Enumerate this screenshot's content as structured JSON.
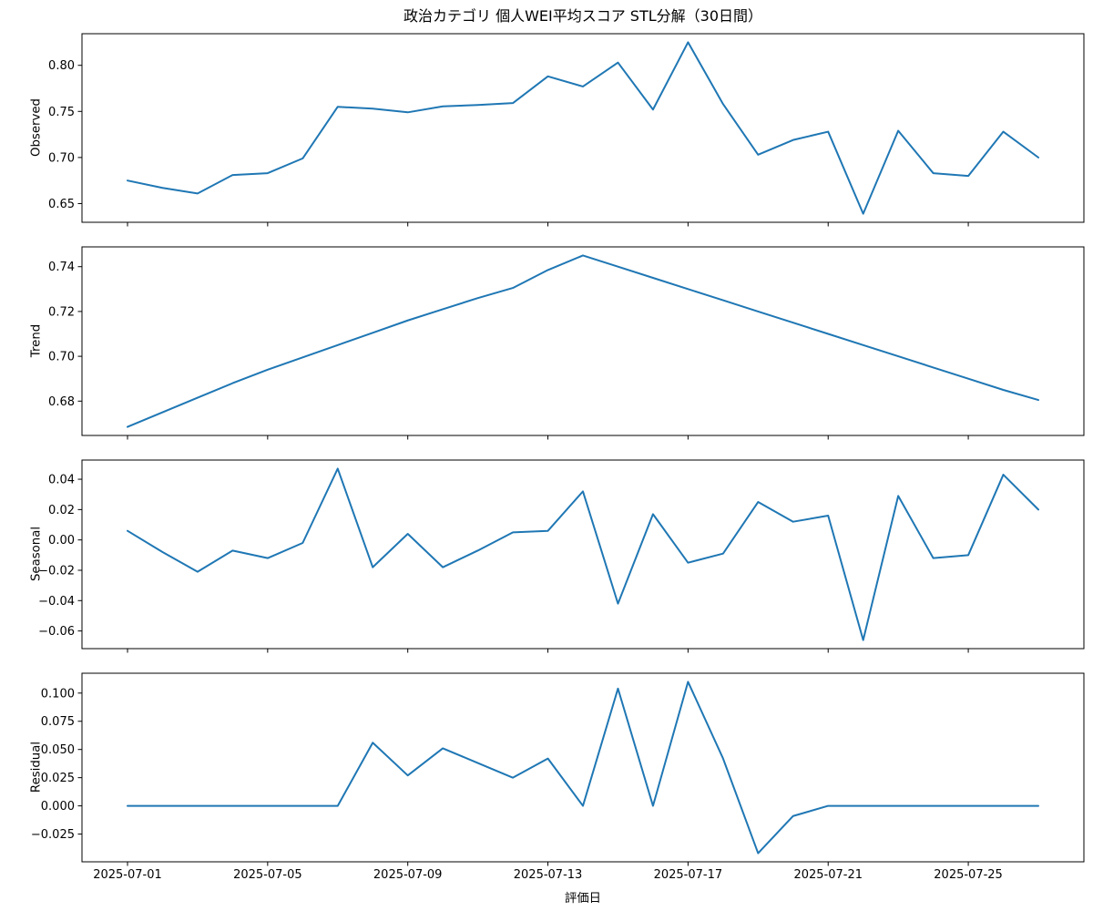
{
  "title": "政治カテゴリ 個人WEI平均スコア STL分解（30日間）",
  "xlabel": "評価日",
  "line_color": "#1f77b4",
  "axis_color": "#000000",
  "x_tick_positions": [
    0,
    4,
    8,
    12,
    16,
    20,
    24
  ],
  "x_tick_labels": [
    "2025-07-01",
    "2025-07-05",
    "2025-07-09",
    "2025-07-13",
    "2025-07-17",
    "2025-07-21",
    "2025-07-25"
  ],
  "dates": [
    "2025-07-01",
    "2025-07-02",
    "2025-07-03",
    "2025-07-04",
    "2025-07-05",
    "2025-07-06",
    "2025-07-07",
    "2025-07-08",
    "2025-07-09",
    "2025-07-10",
    "2025-07-11",
    "2025-07-12",
    "2025-07-13",
    "2025-07-14",
    "2025-07-15",
    "2025-07-16",
    "2025-07-17",
    "2025-07-18",
    "2025-07-19",
    "2025-07-20",
    "2025-07-21",
    "2025-07-22",
    "2025-07-23",
    "2025-07-24",
    "2025-07-25",
    "2025-07-26",
    "2025-07-27"
  ],
  "chart_data": [
    {
      "type": "line",
      "name": "Observed",
      "ylabel": "Observed",
      "values": [
        0.675,
        0.667,
        0.661,
        0.681,
        0.683,
        0.699,
        0.755,
        0.753,
        0.749,
        0.7555,
        0.757,
        0.759,
        0.788,
        0.777,
        0.803,
        0.752,
        0.825,
        0.758,
        0.703,
        0.719,
        0.728,
        0.639,
        0.729,
        0.683,
        0.68,
        0.728,
        0.7
      ],
      "ytick_values": [
        0.65,
        0.7,
        0.75,
        0.8
      ],
      "ytick_labels": [
        "0.65",
        "0.70",
        "0.75",
        "0.80"
      ]
    },
    {
      "type": "line",
      "name": "Trend",
      "ylabel": "Trend",
      "values": [
        0.6685,
        0.675,
        0.6815,
        0.688,
        0.694,
        0.6995,
        0.705,
        0.7105,
        0.716,
        0.721,
        0.726,
        0.7305,
        0.7385,
        0.745,
        0.74,
        0.735,
        0.73,
        0.725,
        0.72,
        0.715,
        0.71,
        0.705,
        0.7,
        0.695,
        0.69,
        0.685,
        0.6805
      ],
      "ytick_values": [
        0.68,
        0.7,
        0.72,
        0.74
      ],
      "ytick_labels": [
        "0.68",
        "0.70",
        "0.72",
        "0.74"
      ]
    },
    {
      "type": "line",
      "name": "Seasonal",
      "ylabel": "Seasonal",
      "values": [
        0.006,
        -0.008,
        -0.021,
        -0.007,
        -0.012,
        -0.002,
        0.047,
        -0.018,
        0.004,
        -0.018,
        -0.007,
        0.005,
        0.006,
        0.032,
        -0.042,
        0.017,
        -0.015,
        -0.009,
        0.025,
        0.012,
        0.016,
        -0.066,
        0.029,
        -0.012,
        -0.01,
        0.043,
        0.02
      ],
      "ytick_values": [
        -0.06,
        -0.04,
        -0.02,
        0.0,
        0.02,
        0.04
      ],
      "ytick_labels": [
        "−0.06",
        "−0.04",
        "−0.02",
        "0.00",
        "0.02",
        "0.04"
      ]
    },
    {
      "type": "line",
      "name": "Residual",
      "ylabel": "Residual",
      "values": [
        0.0,
        0.0,
        0.0,
        0.0,
        0.0,
        0.0,
        0.0,
        0.056,
        0.027,
        0.051,
        0.038,
        0.025,
        0.042,
        0.0,
        0.104,
        0.0,
        0.11,
        0.042,
        -0.042,
        -0.009,
        0.0,
        0.0,
        0.0,
        0.0,
        0.0,
        0.0,
        0.0
      ],
      "ytick_values": [
        -0.025,
        0.0,
        0.025,
        0.05,
        0.075,
        0.1
      ],
      "ytick_labels": [
        "−0.025",
        "0.000",
        "0.025",
        "0.050",
        "0.075",
        "0.100"
      ]
    }
  ]
}
